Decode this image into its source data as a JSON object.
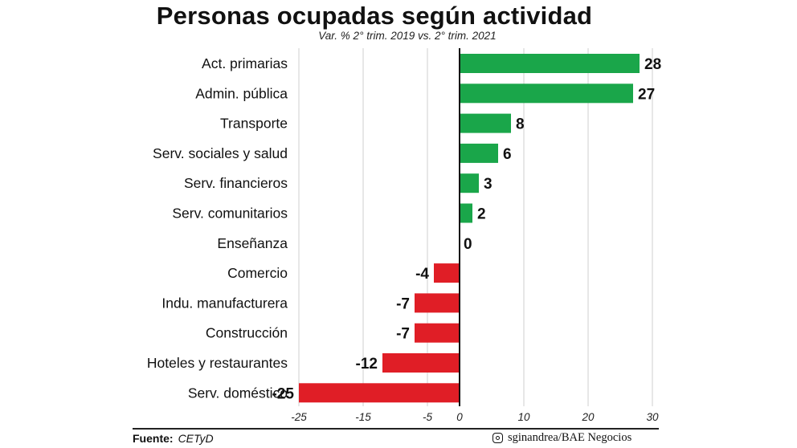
{
  "chart_data": {
    "type": "bar",
    "orientation": "horizontal",
    "title": "Personas ocupadas según actividad",
    "subtitle": "Var. % 2° trim. 2019 vs. 2° trim. 2021",
    "categories": [
      "Act. primarias",
      "Admin. pública",
      "Transporte",
      "Serv. sociales y salud",
      "Serv. financieros",
      "Serv. comunitarios",
      "Enseñanza",
      "Comercio",
      "Indu. manufacturera",
      "Construcción",
      "Hoteles y restaurantes",
      "Serv. doméstico"
    ],
    "values": [
      28,
      27,
      8,
      6,
      3,
      2,
      0,
      -4,
      -7,
      -7,
      -12,
      -25
    ],
    "data_labels": [
      "28",
      "27",
      "8",
      "6",
      "3",
      "2",
      "0",
      "-4",
      "-7",
      "-7",
      "-12",
      "-25"
    ],
    "x_ticks": [
      -25,
      -15,
      -5,
      0,
      10,
      20,
      30
    ],
    "x_tick_labels": [
      "-25",
      "-15",
      "-5",
      "0",
      "10",
      "20",
      "30"
    ],
    "xlim": [
      -25,
      30
    ],
    "grid": "vertical",
    "colors": {
      "positive": "#1aa64a",
      "negative": "#e01e26",
      "grid": "#cfcfcf",
      "axis": "#111111"
    }
  },
  "footer": {
    "source_label": "Fuente:",
    "source_value": "CETyD",
    "credit": "sginandrea/BAE Negocios",
    "credit_icon": "instagram-icon"
  }
}
